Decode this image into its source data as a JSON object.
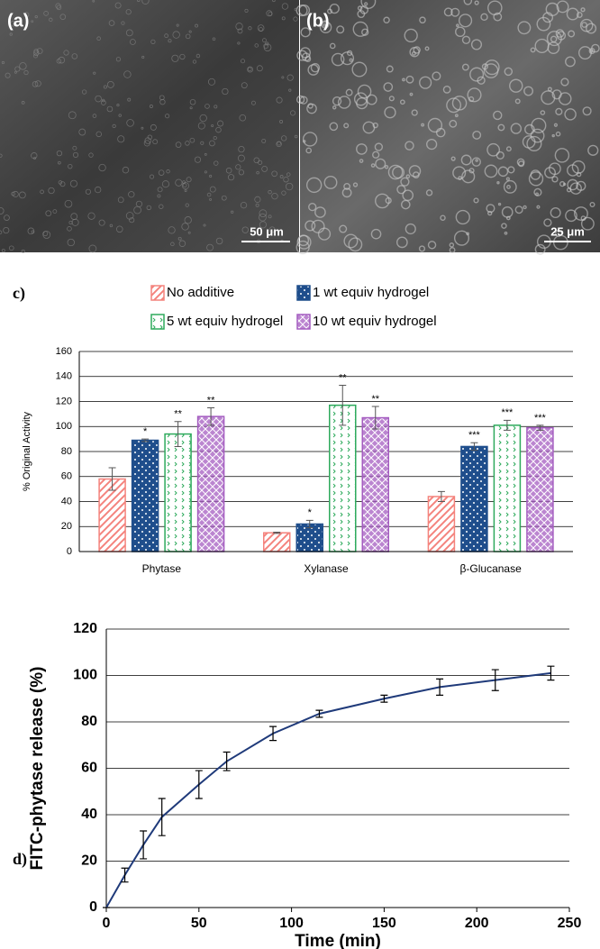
{
  "images": [
    {
      "label": "(a)",
      "scale": "50 μm"
    },
    {
      "label": "(b)",
      "scale": "25 μm"
    }
  ],
  "chart_data": [
    {
      "type": "bar",
      "panel": "c)",
      "ylabel": "% Original Activity",
      "categories": [
        "Phytase",
        "Xylanase",
        "β-Glucanase"
      ],
      "series": [
        {
          "name": "No additive",
          "color": "#f4837d",
          "values": [
            58,
            15,
            44
          ],
          "errors": [
            9,
            0.5,
            4
          ]
        },
        {
          "name": "1 wt equiv hydrogel",
          "color": "#1f4e8c",
          "values": [
            89,
            22,
            84
          ],
          "errors": [
            1,
            3,
            3
          ],
          "annotations": [
            "*",
            "*",
            "***"
          ]
        },
        {
          "name": "5 wt equiv hydrogel",
          "color": "#2eaa5c",
          "values": [
            94,
            117,
            101
          ],
          "errors": [
            10,
            16,
            4
          ],
          "annotations": [
            "**",
            "**",
            "***"
          ]
        },
        {
          "name": "10 wt equiv hydrogel",
          "color": "#a45cc0",
          "values": [
            108,
            107,
            99
          ],
          "errors": [
            7,
            9,
            2
          ],
          "annotations": [
            "**",
            "**",
            "***"
          ]
        }
      ],
      "ylim": [
        0,
        160
      ],
      "yticks": [
        0,
        20,
        40,
        60,
        80,
        100,
        120,
        140,
        160
      ],
      "grid": true
    },
    {
      "type": "line",
      "panel": "d)",
      "xlabel": "Time (min)",
      "ylabel": "FITC-phytase release (%)",
      "x": [
        0,
        10,
        20,
        30,
        50,
        65,
        90,
        115,
        150,
        180,
        210,
        240
      ],
      "series": [
        {
          "color": "#1f3a7a",
          "values": [
            0,
            14,
            27,
            39,
            53,
            63,
            75,
            83.5,
            90,
            95,
            98,
            101
          ],
          "errors": [
            0,
            3,
            6,
            8,
            6,
            4,
            3,
            1.5,
            1.5,
            3.5,
            4.5,
            3
          ]
        }
      ],
      "xlim": [
        0,
        250
      ],
      "xticks": [
        0,
        50,
        100,
        150,
        200,
        250
      ],
      "ylim": [
        0,
        120
      ],
      "yticks": [
        0,
        20,
        40,
        60,
        80,
        100,
        120
      ],
      "grid": true
    }
  ]
}
